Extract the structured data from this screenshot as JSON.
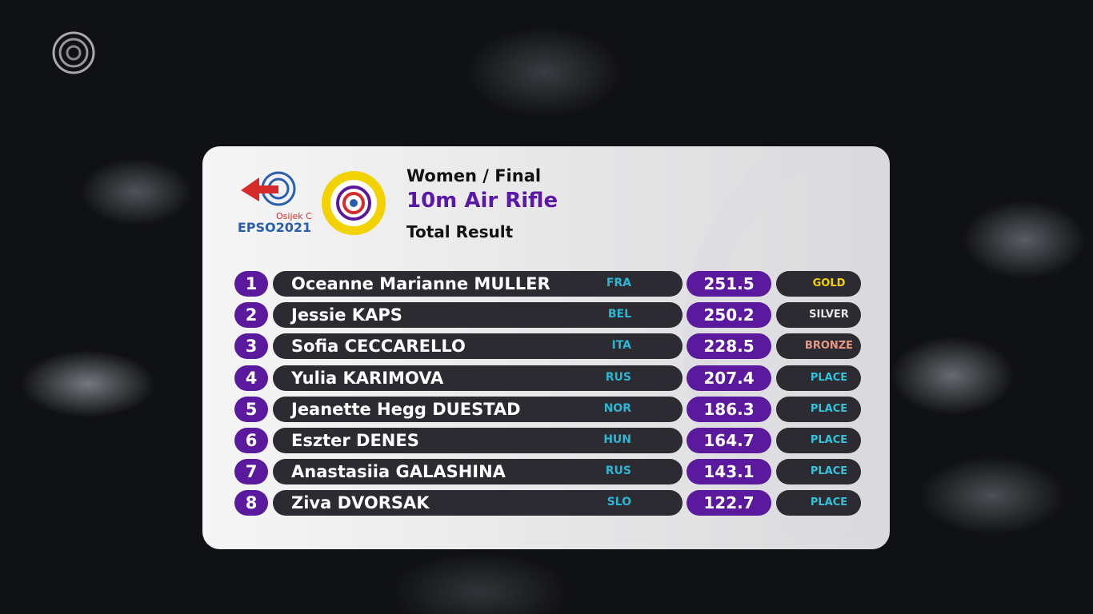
{
  "header": {
    "logo_text": "EPSO2021",
    "logo_place": "Osijek Croatia",
    "line1": "Women / Final",
    "title": "10m Air Rifle",
    "line3": "Total Result"
  },
  "table": {
    "rows": [
      {
        "rank": 1,
        "name": "Oceanne Marianne MULLER",
        "olympic": true,
        "noc": "FRA",
        "flag": [
          "#1f3d99",
          "#ffffff",
          "#e0263a"
        ],
        "flag_dir": "v",
        "score": 251.5,
        "badge": "GOLD",
        "badge_color": "#f2d200",
        "label_color": "#f2d200",
        "medal": true
      },
      {
        "rank": 2,
        "name": "Jessie KAPS",
        "olympic": true,
        "noc": "BEL",
        "flag": [
          "#1a1a1a",
          "#f5d000",
          "#e0263a"
        ],
        "flag_dir": "v",
        "score": 250.2,
        "badge": "SILVER",
        "badge_color": "#c9e6ef",
        "label_color": "#e6e6e6",
        "medal": true
      },
      {
        "rank": 3,
        "name": "Sofia CECCARELLO",
        "olympic": false,
        "noc": "ITA",
        "flag": [
          "#119146",
          "#ffffff",
          "#d8262e"
        ],
        "flag_dir": "v",
        "score": 228.5,
        "badge": "BRONZE",
        "badge_color": "#e0806a",
        "label_color": "#e89a84",
        "medal": true
      },
      {
        "rank": 4,
        "name": "Yulia KARIMOVA",
        "olympic": false,
        "noc": "RUS",
        "flag": [
          "#ffffff",
          "#1f45b5",
          "#e0263a"
        ],
        "flag_dir": "h",
        "score": 207.4,
        "badge": "PLACE",
        "badge_color": "#1fa9c4",
        "label_color": "#33c3dc",
        "medal": false
      },
      {
        "rank": 5,
        "name": "Jeanette Hegg DUESTAD",
        "olympic": false,
        "noc": "NOR",
        "flag": [
          "#d8262e",
          "#1f3d99",
          "#d8262e"
        ],
        "flag_dir": "h",
        "score": 186.3,
        "badge": "PLACE",
        "badge_color": "#1fa9c4",
        "label_color": "#33c3dc",
        "medal": false
      },
      {
        "rank": 6,
        "name": "Eszter DENES",
        "olympic": false,
        "noc": "HUN",
        "flag": [
          "#d8262e",
          "#ffffff",
          "#2e8a4a"
        ],
        "flag_dir": "h",
        "score": 164.7,
        "badge": "PLACE",
        "badge_color": "#1fa9c4",
        "label_color": "#33c3dc",
        "medal": false
      },
      {
        "rank": 7,
        "name": "Anastasiia GALASHINA",
        "olympic": false,
        "noc": "RUS",
        "flag": [
          "#ffffff",
          "#1f45b5",
          "#e0263a"
        ],
        "flag_dir": "h",
        "score": 143.1,
        "badge": "PLACE",
        "badge_color": "#1fa9c4",
        "label_color": "#33c3dc",
        "medal": false
      },
      {
        "rank": 8,
        "name": "Ziva DVORSAK",
        "olympic": false,
        "noc": "SLO",
        "flag": [
          "#ffffff",
          "#1f45b5",
          "#e0263a"
        ],
        "flag_dir": "h",
        "score": 122.7,
        "badge": "PLACE",
        "badge_color": "#1fa9c4",
        "label_color": "#33c3dc",
        "medal": false
      }
    ]
  }
}
